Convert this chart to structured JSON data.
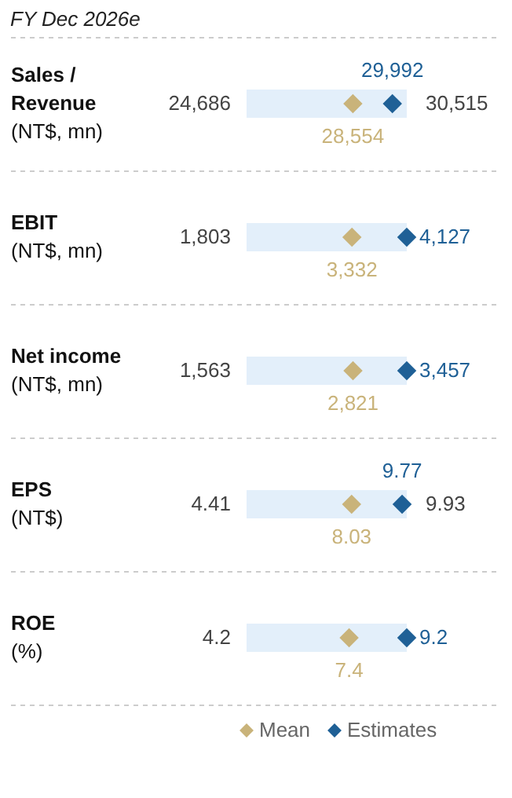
{
  "chart_data": {
    "type": "other",
    "title": "FY Dec 2026e",
    "categories": [
      "Sales /\nRevenue\n(NT$, mn)",
      "EBIT\n(NT$, mn)",
      "Net income\n(NT$, mn)",
      "EPS\n(NT$)",
      "ROE\n(%)"
    ],
    "series": [
      {
        "color": "#444444",
        "values": [
          24686,
          1803,
          1563,
          4.41,
          4.2
        ],
        "value_labels": [
          "24,686",
          "1,803",
          "1,563",
          "4.41",
          "4.2"
        ]
      },
      {
        "color": "#444444",
        "values": [
          30515,
          null,
          null,
          9.93,
          null
        ],
        "value_labels": [
          "30,515",
          null,
          null,
          "9.93",
          null
        ]
      },
      {
        "name": "Mean",
        "color": "#c9b37a",
        "values": [
          28554,
          3332,
          2821,
          8.03,
          7.4
        ],
        "value_labels": [
          "28,554",
          "3,332",
          "2,821",
          "8.03",
          "7.4"
        ]
      },
      {
        "name": "Estimates",
        "color": "#1f6096",
        "values": [
          29992,
          4127,
          3457,
          9.77,
          9.2
        ],
        "value_labels": [
          "29,992",
          "4,127",
          "3,457",
          "9.77",
          "9.2"
        ]
      }
    ],
    "legend": "bottom right"
  }
}
